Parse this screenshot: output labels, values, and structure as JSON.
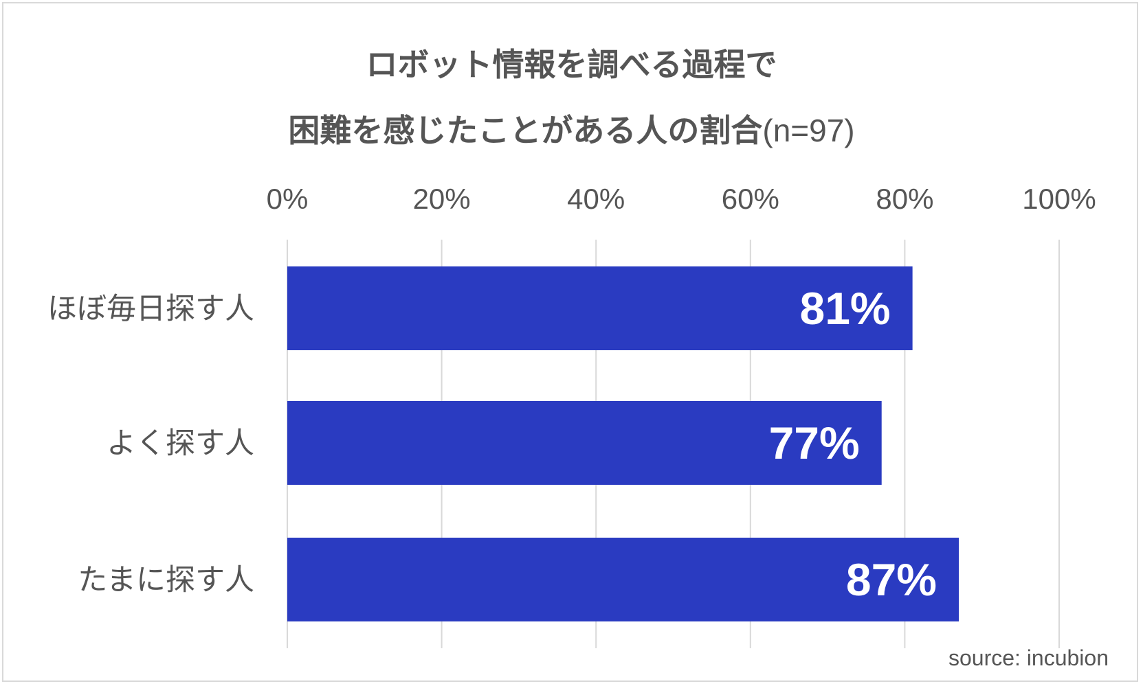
{
  "chart_data": {
    "type": "bar",
    "orientation": "horizontal",
    "title_line1": "ロボット情報を調べる過程で",
    "title_line2": "困難を感じたことがある人の割合",
    "title_suffix": "(n=97)",
    "categories": [
      "ほぼ毎日探す人",
      "よく探す人",
      "たまに探す人"
    ],
    "values": [
      81,
      77,
      87
    ],
    "data_labels": [
      "81%",
      "77%",
      "87%"
    ],
    "xlim": [
      0,
      100
    ],
    "xticks": [
      0,
      20,
      40,
      60,
      80,
      100
    ],
    "xtick_labels": [
      "0%",
      "20%",
      "40%",
      "60%",
      "80%",
      "100%"
    ],
    "xaxis_position": "top",
    "grid": true,
    "bar_color": "#2a3bc1",
    "source": "source: incubion"
  }
}
